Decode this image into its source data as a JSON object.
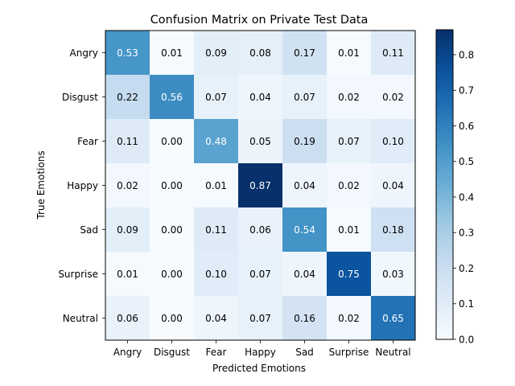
{
  "chart_data": {
    "type": "heatmap",
    "title": "Confusion Matrix on Private Test Data",
    "xlabel": "Predicted Emotions",
    "ylabel": "True Emotions",
    "x_categories": [
      "Angry",
      "Disgust",
      "Fear",
      "Happy",
      "Sad",
      "Surprise",
      "Neutral"
    ],
    "y_categories": [
      "Angry",
      "Disgust",
      "Fear",
      "Happy",
      "Sad",
      "Surprise",
      "Neutral"
    ],
    "values": [
      [
        0.53,
        0.01,
        0.09,
        0.08,
        0.17,
        0.01,
        0.11
      ],
      [
        0.22,
        0.56,
        0.07,
        0.04,
        0.07,
        0.02,
        0.02
      ],
      [
        0.11,
        0.0,
        0.48,
        0.05,
        0.19,
        0.07,
        0.1
      ],
      [
        0.02,
        0.0,
        0.01,
        0.87,
        0.04,
        0.02,
        0.04
      ],
      [
        0.09,
        0.0,
        0.11,
        0.06,
        0.54,
        0.01,
        0.18
      ],
      [
        0.01,
        0.0,
        0.1,
        0.07,
        0.04,
        0.75,
        0.03
      ],
      [
        0.06,
        0.0,
        0.04,
        0.07,
        0.16,
        0.02,
        0.65
      ]
    ],
    "value_labels": [
      [
        "0.53",
        "0.01",
        "0.09",
        "0.08",
        "0.17",
        "0.01",
        "0.11"
      ],
      [
        "0.22",
        "0.56",
        "0.07",
        "0.04",
        "0.07",
        "0.02",
        "0.02"
      ],
      [
        "0.11",
        "0.00",
        "0.48",
        "0.05",
        "0.19",
        "0.07",
        "0.10"
      ],
      [
        "0.02",
        "0.00",
        "0.01",
        "0.87",
        "0.04",
        "0.02",
        "0.04"
      ],
      [
        "0.09",
        "0.00",
        "0.11",
        "0.06",
        "0.54",
        "0.01",
        "0.18"
      ],
      [
        "0.01",
        "0.00",
        "0.10",
        "0.07",
        "0.04",
        "0.75",
        "0.03"
      ],
      [
        "0.06",
        "0.00",
        "0.04",
        "0.07",
        "0.16",
        "0.02",
        "0.65"
      ]
    ],
    "colormap": "Blues",
    "colorbar": {
      "range": [
        0,
        0.87
      ],
      "ticks": [
        0,
        0.1,
        0.2,
        0.3,
        0.4,
        0.5,
        0.6,
        0.7,
        0.8
      ],
      "tick_labels": [
        "0.0",
        "0.1",
        "0.2",
        "0.3",
        "0.4",
        "0.5",
        "0.6",
        "0.7",
        "0.8"
      ]
    },
    "grid": false,
    "colors": {
      "text_dark": "#000000",
      "text_light": "#ffffff",
      "cmap_low": "#f7fbff",
      "cmap_high": "#08306b"
    }
  }
}
